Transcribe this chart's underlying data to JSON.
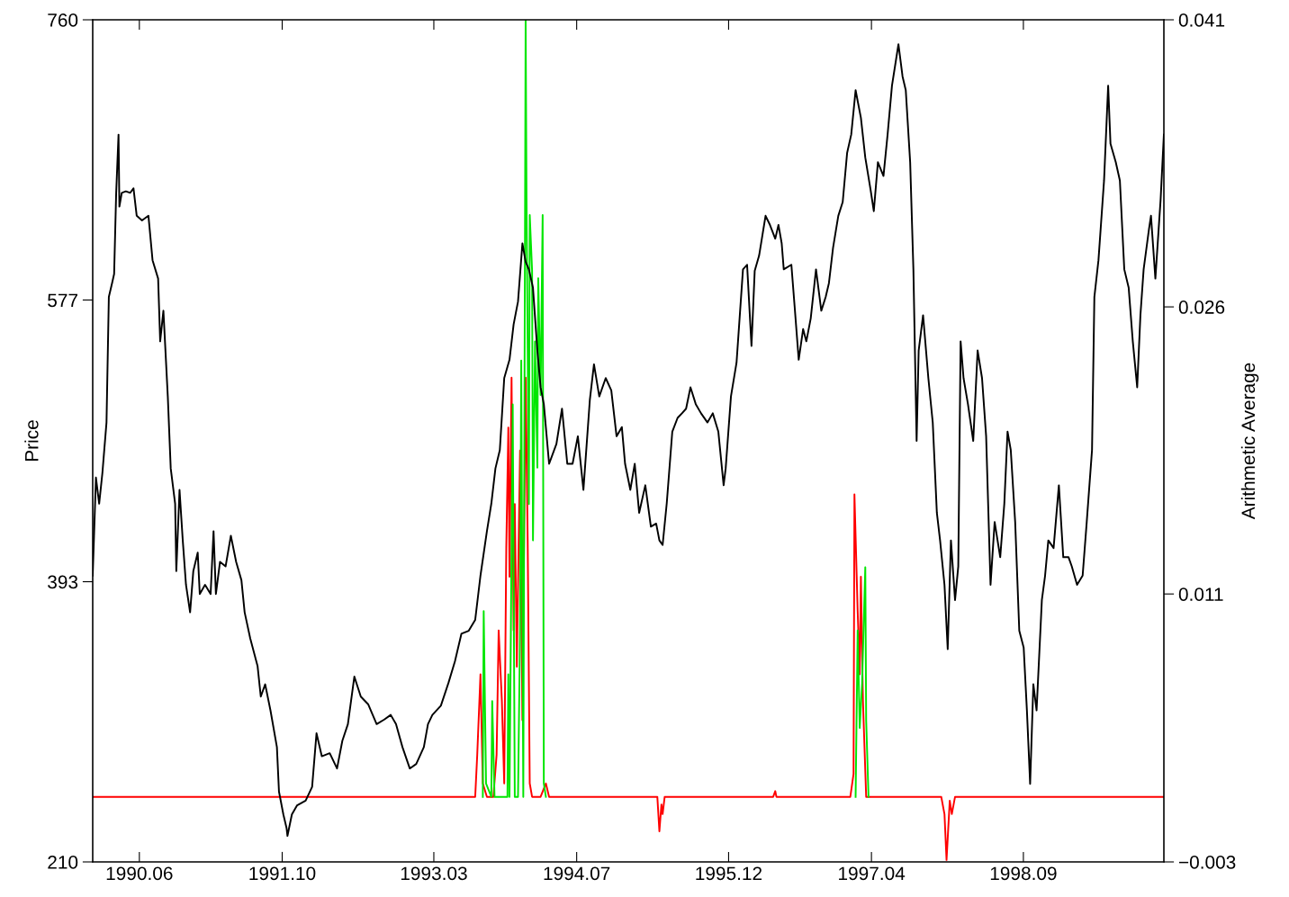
{
  "chart_data": {
    "type": "line",
    "ylabel": "Price",
    "y2label": "Arithmetic Average",
    "xlim": [
      "1989-12-24",
      "1999-12-24"
    ],
    "xticks": [
      {
        "value": "1990-06-01",
        "label": "1990.06"
      },
      {
        "value": "1991-10-01",
        "label": "1991.10"
      },
      {
        "value": "1993-03-01",
        "label": "1993.03"
      },
      {
        "value": "1994-07-01",
        "label": "1994.07"
      },
      {
        "value": "1995-12-01",
        "label": "1995.12"
      },
      {
        "value": "1997-04-01",
        "label": "1997.04"
      },
      {
        "value": "1998-09-01",
        "label": "1998.09"
      }
    ],
    "ylim": [
      210,
      760
    ],
    "yticks": [
      210,
      393,
      577,
      760
    ],
    "y2lim": [
      -0.003,
      0.041
    ],
    "y2ticks": [
      {
        "value": -0.003,
        "label": "−0.003"
      },
      0.011,
      0.026,
      0.041
    ],
    "grid": false,
    "marker": "none",
    "line_style": "solid",
    "series": [
      {
        "color": "#000000",
        "axis": "y",
        "x": [
          "1989-12-24",
          "1990-01-04",
          "1990-01-15",
          "1990-01-26",
          "1990-02-09",
          "1990-02-17",
          "1990-02-28",
          "1990-03-07",
          "1990-03-14",
          "1990-03-22",
          "1990-03-25",
          "1990-04-02",
          "1990-04-16",
          "1990-05-01",
          "1990-05-12",
          "1990-05-23",
          "1990-06-10",
          "1990-07-02",
          "1990-07-16",
          "1990-08-04",
          "1990-08-11",
          "1990-08-22",
          "1990-09-06",
          "1990-09-16",
          "1990-10-01",
          "1990-10-05",
          "1990-10-16",
          "1990-10-27",
          "1990-11-07",
          "1990-11-21",
          "1990-12-02",
          "1990-12-17",
          "1990-12-24",
          "1991-01-11",
          "1991-01-30",
          "1991-02-09",
          "1991-02-17",
          "1991-03-03",
          "1991-03-22",
          "1991-04-09",
          "1991-04-27",
          "1991-05-15",
          "1991-05-26",
          "1991-06-14",
          "1991-07-09",
          "1991-07-20",
          "1991-08-04",
          "1991-08-22",
          "1991-09-13",
          "1991-09-20",
          "1991-10-05",
          "1991-10-16",
          "1991-10-19",
          "1991-11-03",
          "1991-11-21",
          "1991-12-20",
          "1992-01-11",
          "1992-01-26",
          "1992-02-13",
          "1992-03-11",
          "1992-04-05",
          "1992-04-23",
          "1992-05-12",
          "1992-06-03",
          "1992-06-25",
          "1992-07-20",
          "1992-08-18",
          "1992-09-13",
          "1992-10-05",
          "1992-10-23",
          "1992-11-14",
          "1992-12-09",
          "1992-12-31",
          "1993-01-26",
          "1993-02-09",
          "1993-02-24",
          "1993-03-25",
          "1993-04-20",
          "1993-05-12",
          "1993-06-03",
          "1993-06-28",
          "1993-07-20",
          "1993-08-07",
          "1993-08-29",
          "1993-09-13",
          "1993-09-27",
          "1993-10-12",
          "1993-10-27",
          "1993-11-14",
          "1993-11-28",
          "1993-12-13",
          "1993-12-28",
          "1994-01-08",
          "1994-01-19",
          "1994-02-02",
          "1994-02-17",
          "1994-02-28",
          "1994-03-11",
          "1994-03-29",
          "1994-04-23",
          "1994-05-12",
          "1994-05-30",
          "1994-06-17",
          "1994-07-05",
          "1994-07-24",
          "1994-08-15",
          "1994-08-29",
          "1994-09-16",
          "1994-10-08",
          "1994-10-27",
          "1994-11-14",
          "1994-12-02",
          "1994-12-13",
          "1994-12-31",
          "1995-01-15",
          "1995-01-30",
          "1995-02-20",
          "1995-03-11",
          "1995-03-29",
          "1995-04-09",
          "1995-04-20",
          "1995-05-04",
          "1995-05-23",
          "1995-06-10",
          "1995-06-25",
          "1995-07-09",
          "1995-07-24",
          "1995-08-11",
          "1995-08-29",
          "1995-09-20",
          "1995-10-08",
          "1995-10-27",
          "1995-11-14",
          "1995-11-21",
          "1995-12-09",
          "1995-12-28",
          "1996-01-19",
          "1996-02-02",
          "1996-02-17",
          "1996-02-28",
          "1996-03-14",
          "1996-04-05",
          "1996-04-20",
          "1996-05-08",
          "1996-05-19",
          "1996-05-30",
          "1996-06-06",
          "1996-07-02",
          "1996-07-13",
          "1996-07-27",
          "1996-08-11",
          "1996-08-22",
          "1996-09-06",
          "1996-09-24",
          "1996-10-12",
          "1996-10-27",
          "1996-11-07",
          "1996-11-21",
          "1996-12-09",
          "1996-12-24",
          "1997-01-08",
          "1997-01-22",
          "1997-02-06",
          "1997-02-24",
          "1997-03-11",
          "1997-03-29",
          "1997-04-09",
          "1997-04-23",
          "1997-05-12",
          "1997-05-26",
          "1997-06-10",
          "1997-07-02",
          "1997-07-16",
          "1997-07-27",
          "1997-08-11",
          "1997-08-22",
          "1997-09-02",
          "1997-09-09",
          "1997-09-24",
          "1997-10-12",
          "1997-10-27",
          "1997-11-10",
          "1997-11-21",
          "1997-12-06",
          "1997-12-17",
          "1997-12-28",
          "1998-01-11",
          "1998-01-22",
          "1998-01-30",
          "1998-02-09",
          "1998-02-24",
          "1998-03-14",
          "1998-03-29",
          "1998-04-13",
          "1998-04-27",
          "1998-05-12",
          "1998-05-26",
          "1998-06-14",
          "1998-06-28",
          "1998-07-09",
          "1998-07-20",
          "1998-08-04",
          "1998-08-18",
          "1998-09-02",
          "1998-09-13",
          "1998-09-24",
          "1998-10-05",
          "1998-10-16",
          "1998-11-03",
          "1998-11-14",
          "1998-11-25",
          "1998-12-13",
          "1998-12-31",
          "1999-01-15",
          "1999-02-02",
          "1999-02-13",
          "1999-03-03",
          "1999-03-22",
          "1999-04-05",
          "1999-04-23",
          "1999-05-01",
          "1999-05-15",
          "1999-06-03",
          "1999-06-17",
          "1999-06-25",
          "1999-07-13",
          "1999-07-27",
          "1999-08-11",
          "1999-08-26",
          "1999-09-09",
          "1999-09-24",
          "1999-10-05",
          "1999-10-16",
          "1999-11-03",
          "1999-11-10",
          "1999-11-25",
          "1999-12-13",
          "1999-12-24"
        ],
        "values": [
          397,
          461,
          444,
          464,
          497,
          579,
          588,
          594,
          647,
          685,
          638,
          647,
          648,
          647,
          650,
          632,
          629,
          632,
          603,
          591,
          550,
          570,
          514,
          467,
          444,
          400,
          453,
          420,
          391,
          373,
          400,
          412,
          385,
          391,
          385,
          426,
          385,
          406,
          403,
          423,
          406,
          394,
          373,
          356,
          338,
          318,
          326,
          309,
          285,
          256,
          241,
          232,
          227,
          241,
          247,
          250,
          259,
          294,
          279,
          281,
          271,
          289,
          300,
          331,
          318,
          313,
          300,
          303,
          306,
          300,
          285,
          271,
          274,
          285,
          300,
          306,
          312,
          327,
          341,
          359,
          361,
          368,
          397,
          426,
          444,
          467,
          479,
          526,
          538,
          561,
          576,
          614,
          602,
          597,
          585,
          544,
          520,
          509,
          470,
          483,
          506,
          470,
          470,
          488,
          453,
          512,
          535,
          514,
          526,
          518,
          488,
          494,
          470,
          453,
          470,
          438,
          456,
          429,
          431,
          420,
          417,
          444,
          491,
          500,
          503,
          506,
          520,
          509,
          503,
          497,
          503,
          491,
          456,
          467,
          514,
          536,
          597,
          600,
          547,
          596,
          606,
          632,
          626,
          617,
          626,
          614,
          597,
          600,
          573,
          538,
          558,
          550,
          565,
          597,
          570,
          579,
          588,
          611,
          632,
          641,
          673,
          685,
          714,
          696,
          670,
          649,
          635,
          667,
          658,
          685,
          717,
          744,
          723,
          714,
          667,
          597,
          485,
          544,
          567,
          526,
          497,
          438,
          420,
          391,
          349,
          420,
          381,
          403,
          550,
          526,
          509,
          485,
          544,
          526,
          488,
          391,
          432,
          409,
          444,
          491,
          479,
          432,
          361,
          350,
          309,
          261,
          326,
          309,
          381,
          397,
          420,
          415,
          456,
          409,
          409,
          403,
          391,
          397,
          432,
          479,
          579,
          603,
          655,
          717,
          679,
          667,
          655,
          597,
          585,
          550,
          520,
          567,
          597,
          623,
          632,
          591,
          643,
          685
        ]
      },
      {
        "color": "#ff0000",
        "axis": "y2",
        "x": [
          "1989-12-24",
          "1993-07-20",
          "1993-07-27",
          "1993-08-07",
          "1993-08-15",
          "1993-08-29",
          "1993-09-20",
          "1993-10-01",
          "1993-10-08",
          "1993-10-19",
          "1993-10-27",
          "1993-11-03",
          "1993-11-10",
          "1993-11-14",
          "1993-11-21",
          "1993-11-28",
          "1993-12-02",
          "1993-12-09",
          "1993-12-20",
          "1993-12-28",
          "1994-01-08",
          "1994-01-15",
          "1994-01-22",
          "1994-01-30",
          "1994-02-28",
          "1994-03-18",
          "1994-03-29",
          "1995-04-02",
          "1995-04-09",
          "1995-04-16",
          "1995-04-20",
          "1995-04-27",
          "1996-05-01",
          "1996-05-08",
          "1996-05-12",
          "1997-01-19",
          "1997-01-30",
          "1997-02-02",
          "1997-02-13",
          "1997-02-20",
          "1997-02-24",
          "1997-03-03",
          "1997-03-14",
          "1997-11-25",
          "1997-12-06",
          "1997-12-13",
          "1997-12-24",
          "1997-12-31",
          "1998-01-11",
          "1999-12-24"
        ],
        "values": [
          0.0004,
          0.0004,
          0.0026,
          0.0068,
          0.0011,
          0.0004,
          0.0004,
          0.0026,
          0.0091,
          0.0054,
          0.0011,
          0.0134,
          0.0197,
          0.0119,
          0.0223,
          0.0091,
          0.0157,
          0.0072,
          0.0185,
          0.0044,
          0.0223,
          0.0138,
          0.0011,
          0.0004,
          0.0004,
          0.0011,
          0.0004,
          0.0004,
          -0.0014,
          0.0,
          -0.0005,
          0.0004,
          0.0004,
          0.0007,
          0.0004,
          0.0004,
          0.0016,
          0.0162,
          0.0101,
          0.0068,
          0.0119,
          0.0054,
          0.0004,
          0.0004,
          -0.0005,
          -0.0029,
          0.0002,
          -0.0005,
          0.0004,
          0.0004
        ]
      },
      {
        "color": "#00e600",
        "axis": "y2",
        "x": [
          "1993-08-15",
          "1993-08-18",
          "1993-08-26",
          "1993-09-13",
          "1993-09-16",
          "1993-09-24",
          "1993-11-07",
          "1993-11-10",
          "1993-11-14",
          "1993-11-25",
          "1993-12-02",
          "1993-12-13",
          "1993-12-20",
          "1993-12-24",
          "1993-12-31",
          "1994-01-08",
          "1994-01-11",
          "1994-01-19",
          "1994-01-22",
          "1994-01-30",
          "1994-02-02",
          "1994-02-09",
          "1994-02-17",
          "1994-02-20",
          "1994-02-28",
          "1994-03-07",
          "1994-03-11",
          "1994-03-18",
          "1995-06-25",
          "1997-02-06",
          "1997-02-13",
          "1997-02-20",
          "1997-02-28",
          "1997-03-11",
          "1997-03-14",
          "1997-03-22"
        ],
        "values": [
          0.0004,
          0.0101,
          0.0011,
          0.0004,
          0.0054,
          0.0004,
          0.0004,
          0.0068,
          0.0004,
          0.0209,
          0.0004,
          0.0004,
          0.0091,
          0.0232,
          0.0004,
          0.041,
          0.0317,
          0.0157,
          0.0308,
          0.0279,
          0.0138,
          0.0242,
          0.0176,
          0.0275,
          0.0214,
          0.0308,
          0.0011,
          0.0004,
          null,
          0.0004,
          0.0091,
          0.004,
          0.0063,
          0.0124,
          0.0044,
          0.0004
        ]
      }
    ]
  }
}
